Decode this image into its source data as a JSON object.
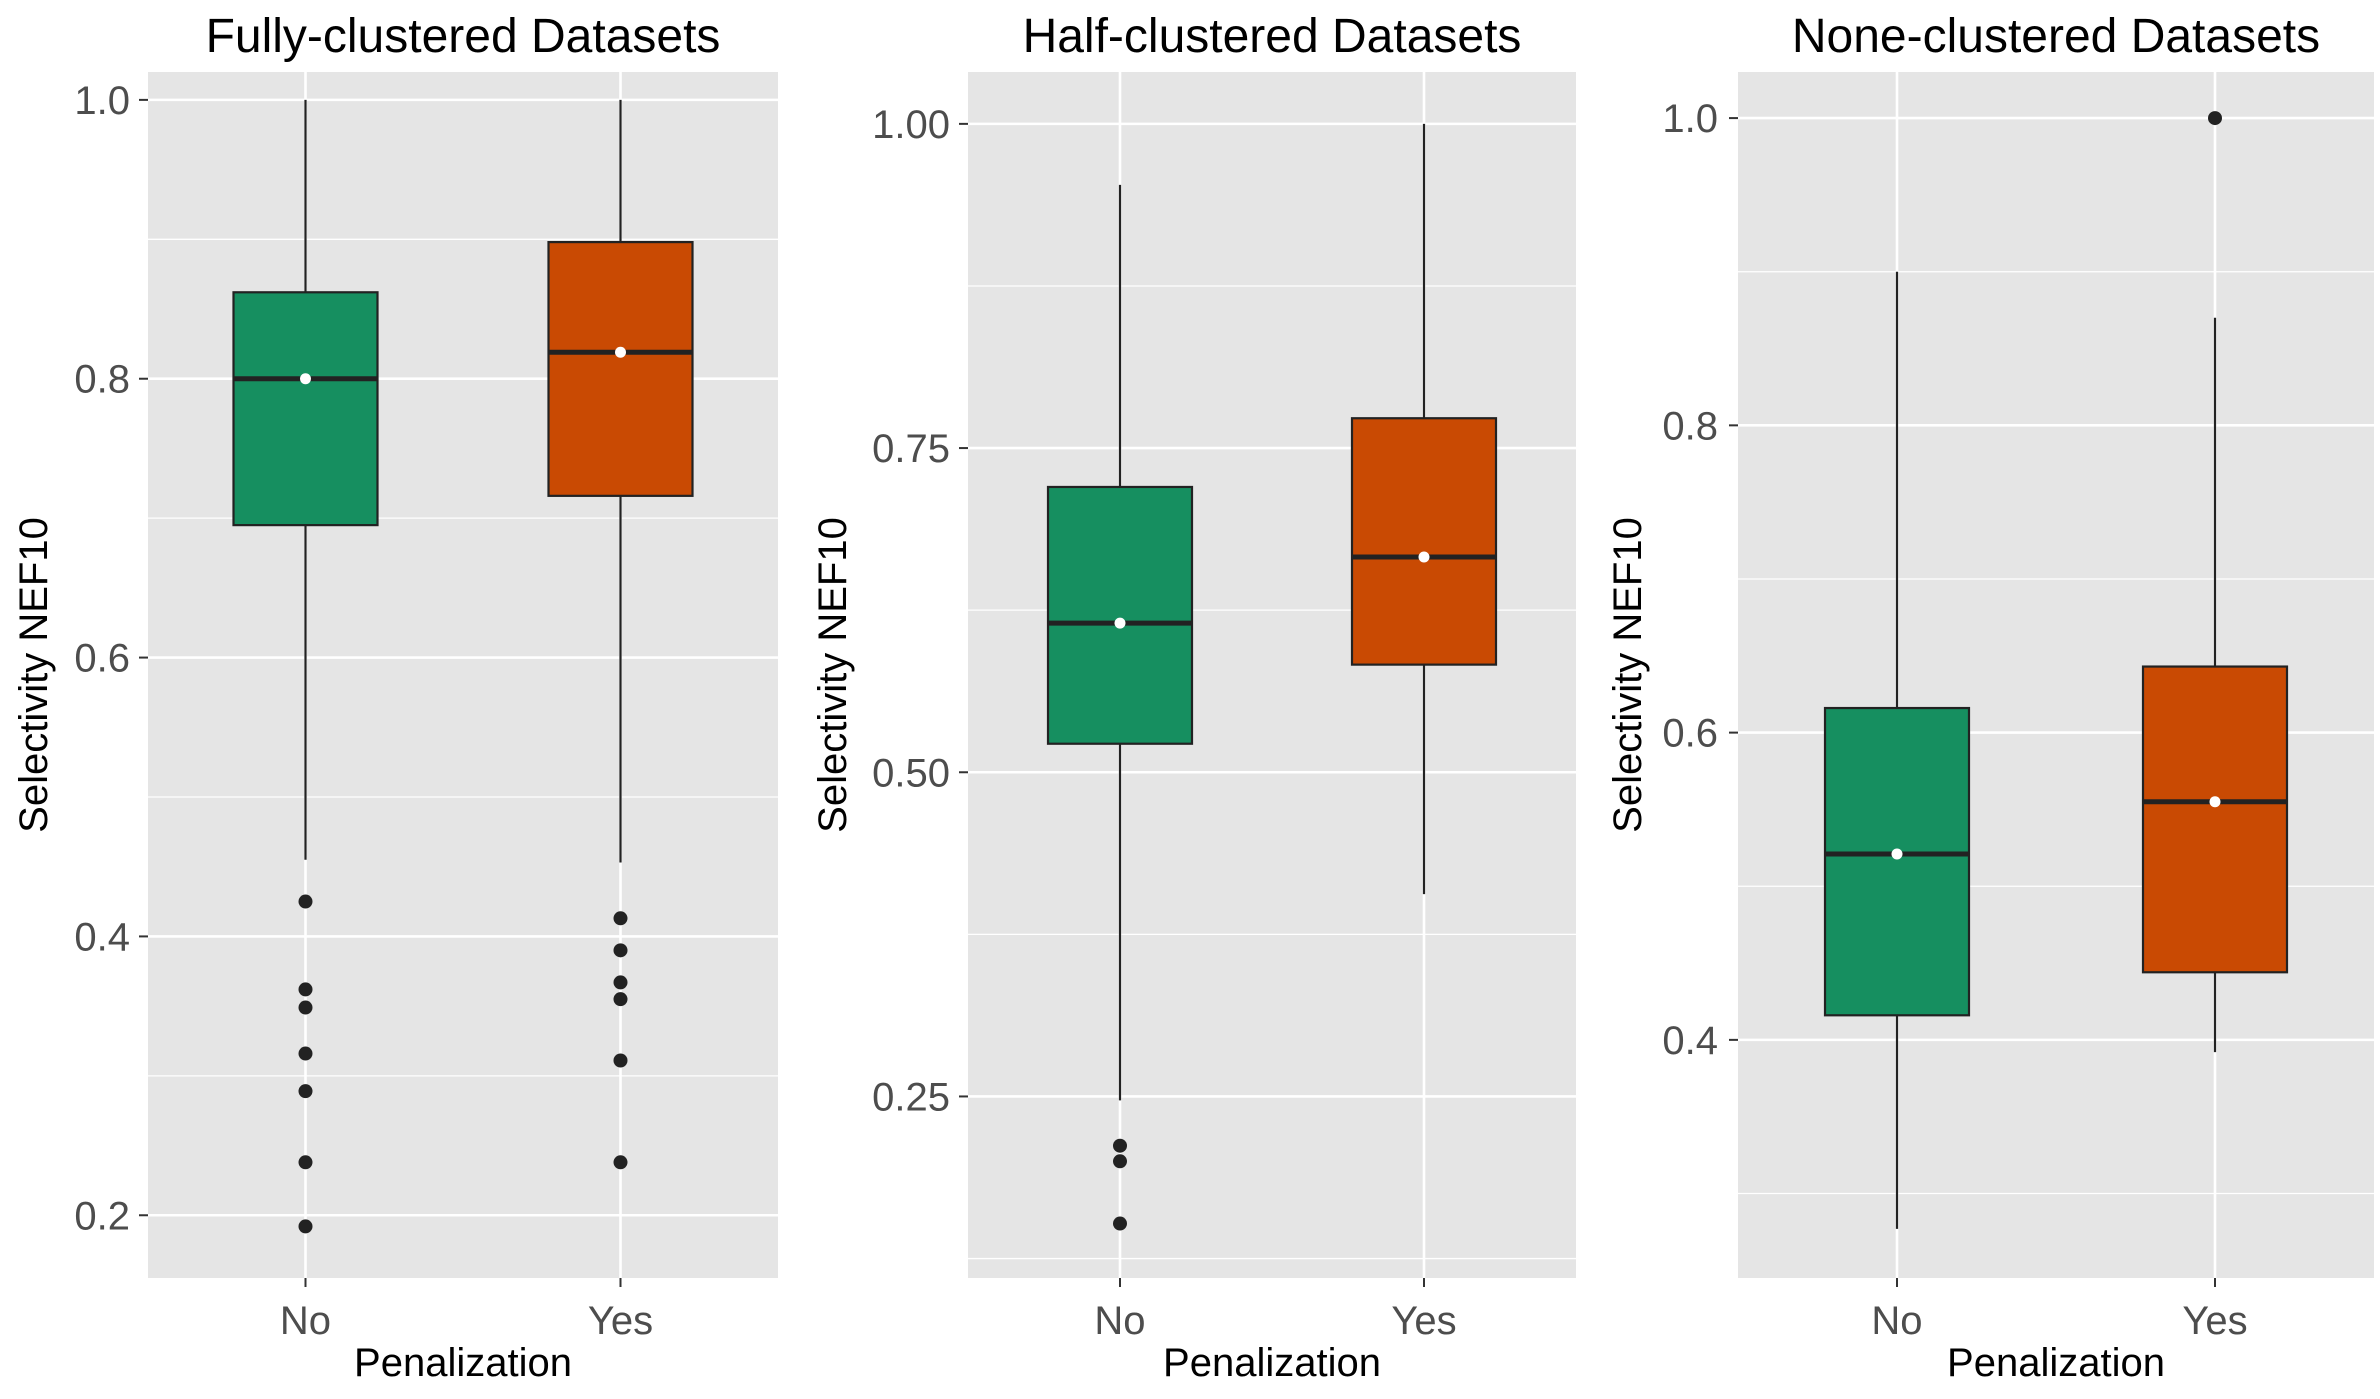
{
  "chart_data": [
    {
      "type": "box",
      "title": "Fully-clustered Datasets",
      "xlabel": "Penalization",
      "ylabel": "Selectivity NEF10",
      "categories": [
        "No",
        "Yes"
      ],
      "ylim": [
        0.155,
        1.02
      ],
      "yticks": [
        0.2,
        0.4,
        0.6,
        0.8,
        1.0
      ],
      "ytick_labels": [
        "0.2",
        "0.4",
        "0.6",
        "0.8",
        "1.0"
      ],
      "grid": true,
      "boxes": [
        {
          "category": "No",
          "color": "#168f60",
          "whisker_low": 0.455,
          "q1": 0.695,
          "median": 0.8,
          "q3": 0.862,
          "whisker_high": 1.0,
          "mean": 0.8,
          "outliers": [
            0.425,
            0.362,
            0.349,
            0.316,
            0.289,
            0.238,
            0.192
          ]
        },
        {
          "category": "Yes",
          "color": "#c94a03",
          "whisker_low": 0.453,
          "q1": 0.716,
          "median": 0.819,
          "q3": 0.898,
          "whisker_high": 1.0,
          "mean": 0.819,
          "outliers": [
            0.413,
            0.39,
            0.367,
            0.355,
            0.311,
            0.238
          ]
        }
      ]
    },
    {
      "type": "box",
      "title": "Half-clustered Datasets",
      "xlabel": "Penalization",
      "ylabel": "Selectivity NEF10",
      "categories": [
        "No",
        "Yes"
      ],
      "ylim": [
        0.11,
        1.04
      ],
      "yticks": [
        0.25,
        0.5,
        0.75,
        1.0
      ],
      "ytick_labels": [
        "0.25",
        "0.50",
        "0.75",
        "1.00"
      ],
      "grid": true,
      "boxes": [
        {
          "category": "No",
          "color": "#168f60",
          "whisker_low": 0.247,
          "q1": 0.522,
          "median": 0.615,
          "q3": 0.72,
          "whisker_high": 0.953,
          "mean": 0.615,
          "outliers": [
            0.212,
            0.2,
            0.152
          ]
        },
        {
          "category": "Yes",
          "color": "#c94a03",
          "whisker_low": 0.406,
          "q1": 0.583,
          "median": 0.666,
          "q3": 0.773,
          "whisker_high": 1.0,
          "mean": 0.666,
          "outliers": []
        }
      ]
    },
    {
      "type": "box",
      "title": "None-clustered Datasets",
      "xlabel": "Penalization",
      "ylabel": "Selectivity NEF10",
      "categories": [
        "No",
        "Yes"
      ],
      "ylim": [
        0.245,
        1.03
      ],
      "yticks": [
        0.4,
        0.6,
        0.8,
        1.0
      ],
      "ytick_labels": [
        "0.4",
        "0.6",
        "0.8",
        "1.0"
      ],
      "grid": true,
      "boxes": [
        {
          "category": "No",
          "color": "#168f60",
          "whisker_low": 0.277,
          "q1": 0.416,
          "median": 0.521,
          "q3": 0.616,
          "whisker_high": 0.9,
          "mean": 0.521,
          "outliers": []
        },
        {
          "category": "Yes",
          "color": "#c94a03",
          "whisker_low": 0.392,
          "q1": 0.444,
          "median": 0.555,
          "q3": 0.643,
          "whisker_high": 0.87,
          "mean": 0.555,
          "outliers": [
            1.0
          ]
        }
      ]
    }
  ],
  "style": {
    "panel_background": "#e5e5e5",
    "grid_color": "#ffffff",
    "box_edge_color": "#222222",
    "outlier_color": "#222222",
    "mean_dot_color": "#ffffff"
  }
}
